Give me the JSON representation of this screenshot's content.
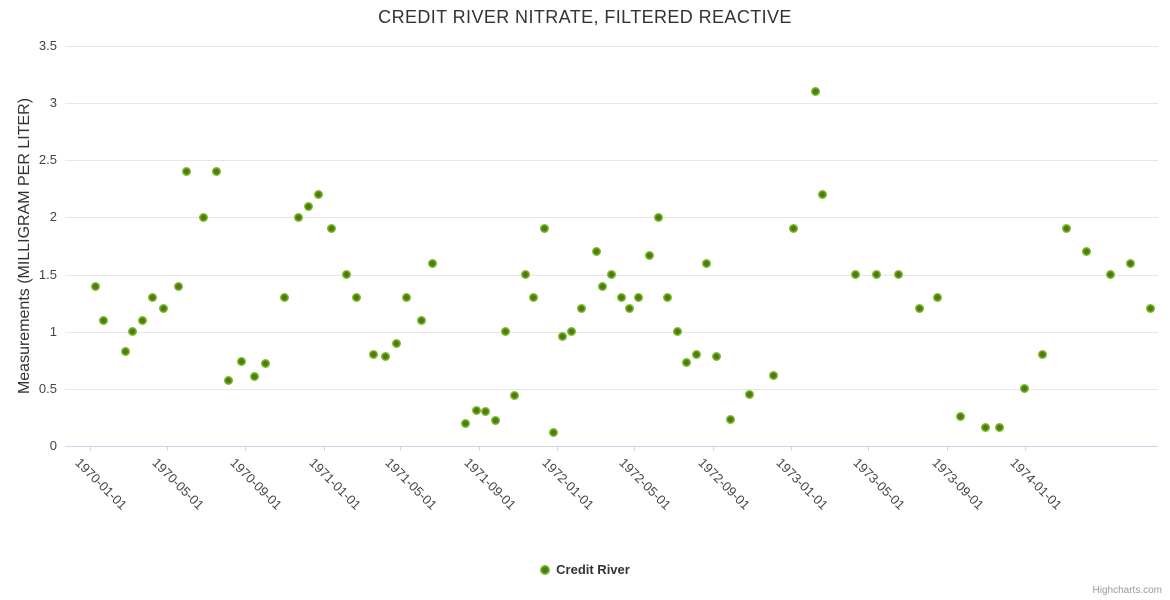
{
  "title": "CREDIT RIVER NITRATE, FILTERED REACTIVE",
  "y_axis": {
    "title": "Measurements (MILLIGRAM PER LITER)",
    "tick_labels": [
      "0",
      "0.5",
      "1",
      "1.5",
      "2",
      "2.5",
      "3",
      "3.5"
    ],
    "tick_values": [
      0,
      0.5,
      1,
      1.5,
      2,
      2.5,
      3,
      3.5
    ]
  },
  "x_axis": {
    "tick_labels": [
      "1970-01-01",
      "1970-05-01",
      "1970-09-01",
      "1971-01-01",
      "1971-05-01",
      "1971-09-01",
      "1972-01-01",
      "1972-05-01",
      "1972-09-01",
      "1973-01-01",
      "1973-05-01",
      "1973-09-01",
      "1974-01-01"
    ]
  },
  "legend": {
    "series_label": "Credit River"
  },
  "credits": {
    "label": "Highcharts.com"
  },
  "colors": {
    "marker_outer": "#8cc63e",
    "marker_inner": "#4a7a10",
    "gridline": "#e6e6e6",
    "axis_line": "#ccd6eb",
    "title_text": "#333333",
    "label_text": "#444444",
    "credits_text": "#999999"
  },
  "chart_data": {
    "type": "scatter",
    "title": "CREDIT RIVER NITRATE, FILTERED REACTIVE",
    "xlabel": "",
    "ylabel": "Measurements (MILLIGRAM PER LITER)",
    "ylim": [
      0,
      3.5
    ],
    "x_range": [
      "1970-01-01",
      "1974-08-01"
    ],
    "grid": true,
    "legend_position": "bottom-center",
    "series": [
      {
        "name": "Credit River",
        "color": "#8cc63e",
        "points": [
          {
            "date": "1970-01-10",
            "value": 1.4
          },
          {
            "date": "1970-01-22",
            "value": 1.1
          },
          {
            "date": "1970-02-25",
            "value": 0.83
          },
          {
            "date": "1970-03-08",
            "value": 1.0
          },
          {
            "date": "1970-03-24",
            "value": 1.1
          },
          {
            "date": "1970-04-09",
            "value": 1.3
          },
          {
            "date": "1970-04-26",
            "value": 1.2
          },
          {
            "date": "1970-05-19",
            "value": 1.4
          },
          {
            "date": "1970-06-01",
            "value": 2.4
          },
          {
            "date": "1970-06-27",
            "value": 2.0
          },
          {
            "date": "1970-07-17",
            "value": 2.4
          },
          {
            "date": "1970-08-05",
            "value": 0.57
          },
          {
            "date": "1970-08-26",
            "value": 0.74
          },
          {
            "date": "1970-09-15",
            "value": 0.61
          },
          {
            "date": "1970-10-03",
            "value": 0.72
          },
          {
            "date": "1970-11-01",
            "value": 1.3
          },
          {
            "date": "1970-11-23",
            "value": 2.0
          },
          {
            "date": "1970-12-09",
            "value": 2.1
          },
          {
            "date": "1970-12-24",
            "value": 2.2
          },
          {
            "date": "1971-01-13",
            "value": 1.9
          },
          {
            "date": "1971-02-06",
            "value": 1.5
          },
          {
            "date": "1971-02-22",
            "value": 1.3
          },
          {
            "date": "1971-03-20",
            "value": 0.8
          },
          {
            "date": "1971-04-08",
            "value": 0.78
          },
          {
            "date": "1971-04-25",
            "value": 0.9
          },
          {
            "date": "1971-05-10",
            "value": 1.3
          },
          {
            "date": "1971-06-03",
            "value": 1.1
          },
          {
            "date": "1971-06-21",
            "value": 1.6
          },
          {
            "date": "1971-08-11",
            "value": 0.2
          },
          {
            "date": "1971-08-28",
            "value": 0.31
          },
          {
            "date": "1971-09-11",
            "value": 0.3
          },
          {
            "date": "1971-09-27",
            "value": 0.22
          },
          {
            "date": "1971-10-13",
            "value": 1.0
          },
          {
            "date": "1971-10-27",
            "value": 0.44
          },
          {
            "date": "1971-11-12",
            "value": 1.5
          },
          {
            "date": "1971-11-26",
            "value": 1.3
          },
          {
            "date": "1971-12-12",
            "value": 1.9
          },
          {
            "date": "1971-12-27",
            "value": 0.12
          },
          {
            "date": "1972-01-10",
            "value": 0.96
          },
          {
            "date": "1972-01-23",
            "value": 1.0
          },
          {
            "date": "1972-02-09",
            "value": 1.2
          },
          {
            "date": "1972-03-02",
            "value": 1.7
          },
          {
            "date": "1972-03-12",
            "value": 1.4
          },
          {
            "date": "1972-03-26",
            "value": 1.5
          },
          {
            "date": "1972-04-10",
            "value": 1.3
          },
          {
            "date": "1972-04-24",
            "value": 1.2
          },
          {
            "date": "1972-05-08",
            "value": 1.3
          },
          {
            "date": "1972-05-24",
            "value": 1.67
          },
          {
            "date": "1972-06-07",
            "value": 2.0
          },
          {
            "date": "1972-06-21",
            "value": 1.3
          },
          {
            "date": "1972-07-08",
            "value": 1.0
          },
          {
            "date": "1972-07-22",
            "value": 0.73
          },
          {
            "date": "1972-08-06",
            "value": 0.8
          },
          {
            "date": "1972-08-21",
            "value": 1.6
          },
          {
            "date": "1972-09-06",
            "value": 0.78
          },
          {
            "date": "1972-09-28",
            "value": 0.23
          },
          {
            "date": "1972-10-28",
            "value": 0.45
          },
          {
            "date": "1972-12-05",
            "value": 0.62
          },
          {
            "date": "1973-01-05",
            "value": 1.9
          },
          {
            "date": "1973-02-08",
            "value": 3.1
          },
          {
            "date": "1973-02-19",
            "value": 2.2
          },
          {
            "date": "1973-04-11",
            "value": 1.5
          },
          {
            "date": "1973-05-15",
            "value": 1.5
          },
          {
            "date": "1973-06-18",
            "value": 1.5
          },
          {
            "date": "1973-07-20",
            "value": 1.2
          },
          {
            "date": "1973-08-17",
            "value": 1.3
          },
          {
            "date": "1973-09-23",
            "value": 0.26
          },
          {
            "date": "1973-11-01",
            "value": 0.16
          },
          {
            "date": "1973-11-23",
            "value": 0.16
          },
          {
            "date": "1974-01-01",
            "value": 0.5
          },
          {
            "date": "1974-01-29",
            "value": 0.8
          },
          {
            "date": "1974-03-08",
            "value": 1.9
          },
          {
            "date": "1974-04-08",
            "value": 1.7
          },
          {
            "date": "1974-05-15",
            "value": 1.5
          },
          {
            "date": "1974-06-15",
            "value": 1.6
          },
          {
            "date": "1974-07-16",
            "value": 1.2
          }
        ]
      }
    ]
  }
}
